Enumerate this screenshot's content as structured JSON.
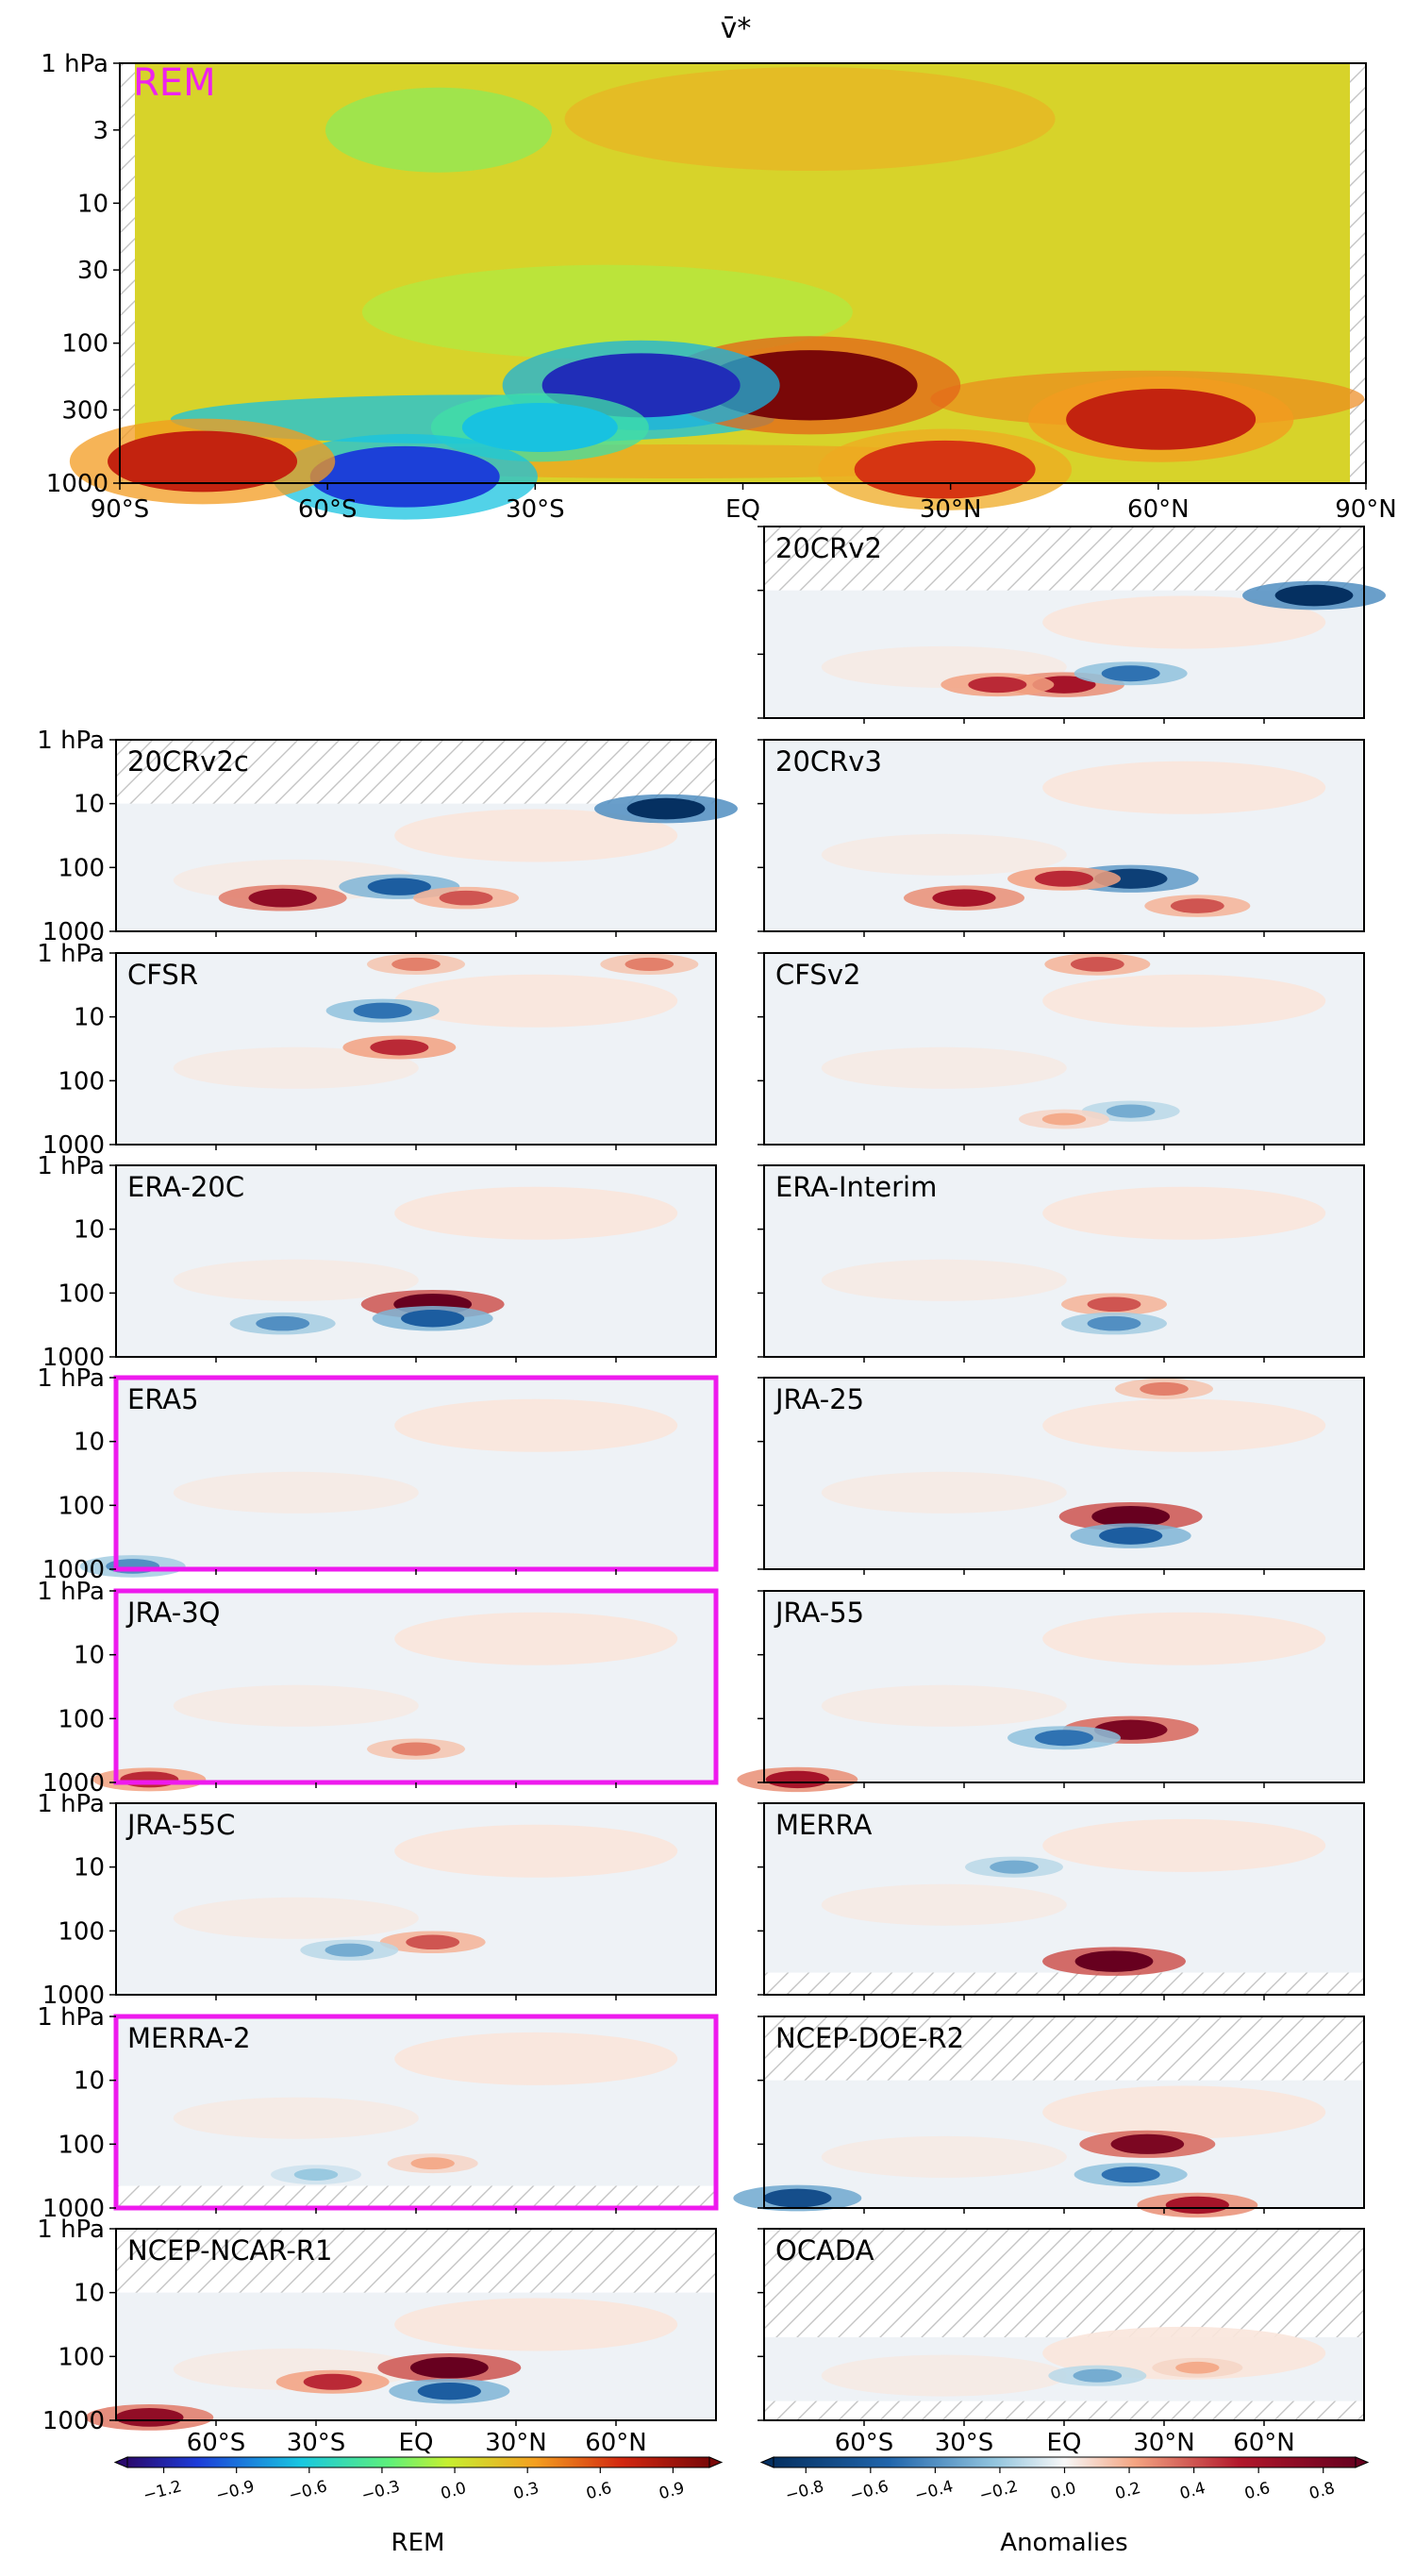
{
  "figure": {
    "title": "v̄*",
    "pressure_ticks": [
      "1 hPa",
      "3",
      "10",
      "30",
      "100",
      "300",
      "1000"
    ],
    "small_pressure_ticks": [
      "1 hPa",
      "10",
      "100",
      "1000"
    ],
    "lat_ticks_main": [
      "90°S",
      "60°S",
      "30°S",
      "EQ",
      "30°N",
      "60°N",
      "90°N"
    ],
    "lat_ticks_bottom": [
      "60°S",
      "30°S",
      "EQ",
      "30°N",
      "60°N"
    ],
    "rem_label": "REM",
    "anom_label": "Anomalies",
    "rem_cbar_ticks": [
      "−1.2",
      "−0.9",
      "−0.6",
      "−0.3",
      "0.0",
      "0.3",
      "0.6",
      "0.9"
    ],
    "anom_cbar_ticks": [
      "−0.8",
      "−0.6",
      "−0.4",
      "−0.2",
      "0.0",
      "0.2",
      "0.4",
      "0.6",
      "0.8"
    ],
    "colors": {
      "highlight": "#ee1aee",
      "rem_label": "#ee22ee"
    }
  },
  "chart_data": {
    "type": "heatmap",
    "title": "v̄*",
    "x_axis": {
      "min": -90,
      "max": 90,
      "ticks": [
        -90,
        -60,
        -30,
        0,
        30,
        60,
        90
      ]
    },
    "y_axis": {
      "scale": "log",
      "reversed": true,
      "min": 1,
      "max": 1000,
      "unit": "hPa",
      "ticks": [
        1,
        3,
        10,
        30,
        100,
        300,
        1000
      ]
    },
    "main_panel": {
      "name": "REM",
      "colormap": "jet",
      "vmin": -1.2,
      "vmax": 1.2,
      "features": [
        {
          "lat": 10,
          "p": 200,
          "value": 1.2
        },
        {
          "lat": 62,
          "p": 350,
          "value": 0.9
        },
        {
          "lat": 30,
          "p": 800,
          "value": 0.8
        },
        {
          "lat": -15,
          "p": 200,
          "value": -1.0
        },
        {
          "lat": -30,
          "p": 400,
          "value": -0.5
        },
        {
          "lat": -50,
          "p": 900,
          "value": -0.9
        },
        {
          "lat": -80,
          "p": 700,
          "value": 0.9
        }
      ]
    },
    "anomaly_panels": [
      {
        "name": "20CRv2",
        "top_hpa": 10,
        "highlight": false,
        "features": [
          {
            "lat": 75,
            "p": 12,
            "value": -0.9
          },
          {
            "lat": 0,
            "p": 300,
            "value": 0.6
          },
          {
            "lat": -20,
            "p": 300,
            "value": 0.5
          },
          {
            "lat": 20,
            "p": 200,
            "value": -0.5
          }
        ]
      },
      {
        "name": "20CRv2c",
        "top_hpa": 10,
        "highlight": false,
        "features": [
          {
            "lat": 75,
            "p": 12,
            "value": -0.9
          },
          {
            "lat": -40,
            "p": 300,
            "value": 0.7
          },
          {
            "lat": -5,
            "p": 200,
            "value": -0.6
          },
          {
            "lat": 15,
            "p": 300,
            "value": 0.4
          }
        ]
      },
      {
        "name": "20CRv3",
        "top_hpa": 1,
        "highlight": false,
        "features": [
          {
            "lat": 20,
            "p": 150,
            "value": -0.8
          },
          {
            "lat": -30,
            "p": 300,
            "value": 0.6
          },
          {
            "lat": 0,
            "p": 150,
            "value": 0.5
          },
          {
            "lat": 40,
            "p": 400,
            "value": 0.4
          }
        ]
      },
      {
        "name": "CFSR",
        "top_hpa": 1,
        "highlight": false,
        "features": [
          {
            "lat": -10,
            "p": 8,
            "value": -0.5
          },
          {
            "lat": -5,
            "p": 30,
            "value": 0.5
          },
          {
            "lat": 0,
            "p": 1.5,
            "value": 0.3
          },
          {
            "lat": 70,
            "p": 1.5,
            "value": 0.3
          }
        ]
      },
      {
        "name": "CFSv2",
        "top_hpa": 1,
        "highlight": false,
        "features": [
          {
            "lat": 10,
            "p": 1.5,
            "value": 0.4
          },
          {
            "lat": 20,
            "p": 300,
            "value": -0.3
          },
          {
            "lat": 0,
            "p": 400,
            "value": 0.2
          }
        ]
      },
      {
        "name": "ERA-20C",
        "top_hpa": 1,
        "highlight": false,
        "features": [
          {
            "lat": 5,
            "p": 150,
            "value": 0.9
          },
          {
            "lat": 5,
            "p": 250,
            "value": -0.6
          },
          {
            "lat": -40,
            "p": 300,
            "value": -0.4
          }
        ]
      },
      {
        "name": "ERA-Interim",
        "top_hpa": 1,
        "highlight": false,
        "features": [
          {
            "lat": 15,
            "p": 150,
            "value": 0.4
          },
          {
            "lat": 15,
            "p": 300,
            "value": -0.4
          }
        ]
      },
      {
        "name": "ERA5",
        "top_hpa": 1,
        "highlight": true,
        "features": [
          {
            "lat": -85,
            "p": 900,
            "value": -0.4
          }
        ]
      },
      {
        "name": "JRA-25",
        "top_hpa": 1,
        "highlight": false,
        "features": [
          {
            "lat": 20,
            "p": 150,
            "value": 0.9
          },
          {
            "lat": 20,
            "p": 300,
            "value": -0.6
          },
          {
            "lat": 30,
            "p": 1.5,
            "value": 0.3
          }
        ]
      },
      {
        "name": "JRA-3Q",
        "top_hpa": 1,
        "highlight": true,
        "features": [
          {
            "lat": -80,
            "p": 900,
            "value": 0.5
          },
          {
            "lat": 0,
            "p": 300,
            "value": 0.3
          }
        ]
      },
      {
        "name": "JRA-55",
        "top_hpa": 1,
        "highlight": false,
        "features": [
          {
            "lat": 20,
            "p": 150,
            "value": 0.8
          },
          {
            "lat": 0,
            "p": 200,
            "value": -0.5
          },
          {
            "lat": -80,
            "p": 900,
            "value": 0.6
          }
        ]
      },
      {
        "name": "JRA-55C",
        "top_hpa": 1,
        "highlight": false,
        "features": [
          {
            "lat": 5,
            "p": 150,
            "value": 0.4
          },
          {
            "lat": -20,
            "p": 200,
            "value": -0.3
          }
        ]
      },
      {
        "name": "MERRA",
        "top_hpa": 1,
        "highlight": false,
        "features": [
          {
            "lat": 15,
            "p": 300,
            "value": 0.9
          },
          {
            "lat": -15,
            "p": 10,
            "value": -0.3
          }
        ]
      },
      {
        "name": "MERRA-2",
        "top_hpa": 1,
        "highlight": true,
        "features": [
          {
            "lat": 5,
            "p": 200,
            "value": 0.2
          },
          {
            "lat": -30,
            "p": 300,
            "value": -0.2
          }
        ]
      },
      {
        "name": "NCEP-DOE-R2",
        "top_hpa": 10,
        "highlight": false,
        "features": [
          {
            "lat": 25,
            "p": 100,
            "value": 0.8
          },
          {
            "lat": 20,
            "p": 300,
            "value": -0.5
          },
          {
            "lat": -80,
            "p": 700,
            "value": -0.7
          },
          {
            "lat": 40,
            "p": 900,
            "value": 0.6
          }
        ]
      },
      {
        "name": "NCEP-NCAR-R1",
        "top_hpa": 10,
        "highlight": false,
        "features": [
          {
            "lat": 10,
            "p": 150,
            "value": 0.9
          },
          {
            "lat": 10,
            "p": 350,
            "value": -0.6
          },
          {
            "lat": -25,
            "p": 250,
            "value": 0.5
          },
          {
            "lat": -80,
            "p": 900,
            "value": 0.7
          }
        ]
      },
      {
        "name": "OCADA",
        "top_hpa": 50,
        "highlight": false,
        "features": [
          {
            "lat": 10,
            "p": 200,
            "value": -0.3
          },
          {
            "lat": 40,
            "p": 150,
            "value": 0.2
          }
        ]
      }
    ]
  }
}
